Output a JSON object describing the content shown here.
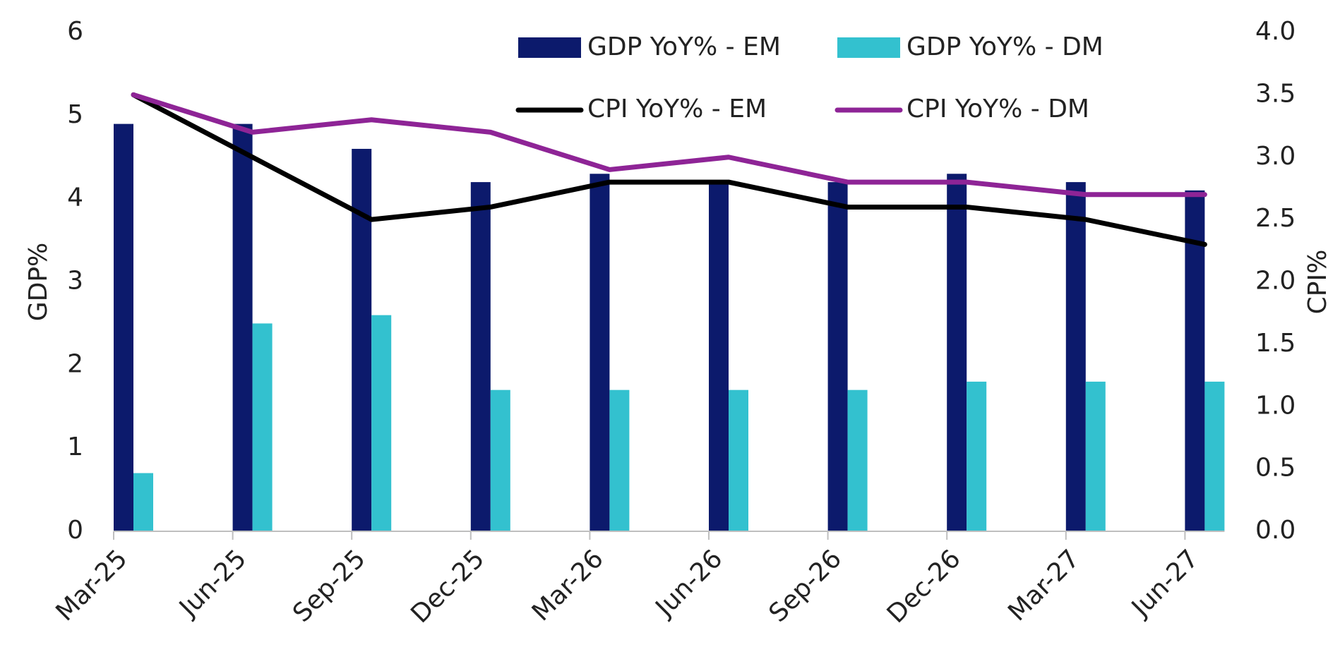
{
  "chart_data": {
    "type": "bar-line",
    "categories": [
      "Mar-25",
      "Jun-25",
      "Sep-25",
      "Dec-25",
      "Mar-26",
      "Jun-26",
      "Sep-26",
      "Dec-26",
      "Mar-27",
      "Jun-27"
    ],
    "series": [
      {
        "name": "GDP YoY% - EM",
        "type": "bar",
        "color": "#0c1a6c",
        "values": [
          4.9,
          4.9,
          4.6,
          4.2,
          4.3,
          4.2,
          4.2,
          4.3,
          4.2,
          4.1
        ]
      },
      {
        "name": "GDP YoY% - DM",
        "type": "bar",
        "color": "#33c1cf",
        "values": [
          0.7,
          2.5,
          2.6,
          1.7,
          1.7,
          1.7,
          1.7,
          1.8,
          1.8,
          1.8
        ]
      },
      {
        "name": "CPI YoY% - EM",
        "type": "line",
        "axis": "y2",
        "color": "#000000",
        "values": [
          3.5,
          3.0,
          2.5,
          2.6,
          2.8,
          2.8,
          2.6,
          2.6,
          2.5,
          2.3
        ]
      },
      {
        "name": "CPI YoY% - DM",
        "type": "line",
        "axis": "y2",
        "color": "#8e2496",
        "values": [
          3.5,
          3.2,
          3.3,
          3.2,
          2.9,
          3.0,
          2.8,
          2.8,
          2.7,
          2.7
        ]
      }
    ],
    "y_label": "GDP%",
    "y2_label": "CPI%",
    "ylim": [
      0,
      6
    ],
    "yticks": [
      0,
      1,
      2,
      3,
      4,
      5,
      6
    ],
    "y2lim": [
      0,
      4
    ],
    "y2ticks": [
      {
        "value": 0,
        "label": "0.0"
      },
      0.5,
      {
        "value": 1,
        "label": "1.0"
      },
      1.5,
      {
        "value": 2,
        "label": "2.0"
      },
      2.5,
      {
        "value": 3,
        "label": "3.0"
      },
      3.5,
      {
        "value": 4,
        "label": "4.0"
      }
    ]
  }
}
